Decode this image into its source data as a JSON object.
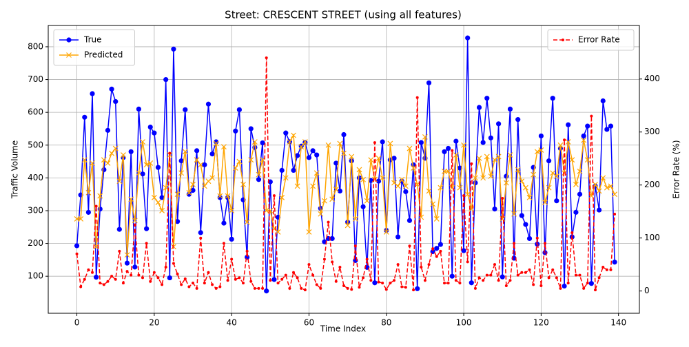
{
  "chart_data": {
    "type": "line",
    "title": "Street: CRESCENT STREET (using all features)",
    "x_label": "Time Index",
    "y_label": "Traffic Volume",
    "y2_label": "Error Rate (%)",
    "x": [
      0,
      1,
      2,
      3,
      4,
      5,
      6,
      7,
      8,
      9,
      10,
      11,
      12,
      13,
      14,
      15,
      16,
      17,
      18,
      19,
      20,
      21,
      22,
      23,
      24,
      25,
      26,
      27,
      28,
      29,
      30,
      31,
      32,
      33,
      34,
      35,
      36,
      37,
      38,
      39,
      40,
      41,
      42,
      43,
      44,
      45,
      46,
      47,
      48,
      49,
      50,
      51,
      52,
      53,
      54,
      55,
      56,
      57,
      58,
      59,
      60,
      61,
      62,
      63,
      64,
      65,
      66,
      67,
      68,
      69,
      70,
      71,
      72,
      73,
      74,
      75,
      76,
      77,
      78,
      79,
      80,
      81,
      82,
      83,
      84,
      85,
      86,
      87,
      88,
      89,
      90,
      91,
      92,
      93,
      94,
      95,
      96,
      97,
      98,
      99,
      100,
      101,
      102,
      103,
      104,
      105,
      106,
      107,
      108,
      109,
      110,
      111,
      112,
      113,
      114,
      115,
      116,
      117,
      118,
      119,
      120,
      121,
      122,
      123,
      124,
      125,
      126,
      127,
      128,
      129,
      130,
      131,
      132,
      133,
      134,
      135,
      136,
      137,
      138,
      139
    ],
    "series": [
      {
        "name": "True",
        "color": "#0000ff",
        "marker": "circle",
        "linestyle": "solid",
        "axis": "y",
        "values": [
          193,
          348,
          585,
          295,
          657,
          97,
          305,
          425,
          545,
          671,
          633,
          243,
          462,
          140,
          480,
          128,
          610,
          412,
          245,
          555,
          537,
          432,
          340,
          700,
          95,
          793,
          267,
          452,
          608,
          350,
          362,
          483,
          233,
          440,
          625,
          473,
          510,
          340,
          262,
          340,
          213,
          543,
          608,
          333,
          158,
          550,
          493,
          395,
          507,
          55,
          388,
          90,
          280,
          423,
          537,
          510,
          423,
          468,
          497,
          508,
          462,
          483,
          470,
          307,
          205,
          215,
          215,
          445,
          360,
          532,
          265,
          452,
          148,
          400,
          312,
          127,
          392,
          80,
          390,
          510,
          240,
          455,
          460,
          220,
          390,
          358,
          270,
          440,
          62,
          508,
          460,
          690,
          175,
          185,
          197,
          480,
          490,
          100,
          512,
          430,
          178,
          827,
          80,
          385,
          615,
          508,
          643,
          522,
          305,
          565,
          98,
          405,
          610,
          155,
          578,
          285,
          258,
          215,
          432,
          198,
          528,
          172,
          452,
          643,
          330,
          490,
          70,
          562,
          220,
          295,
          350,
          528,
          558,
          78,
          375,
          302,
          635,
          548,
          558,
          143
        ]
      },
      {
        "name": "Predicted",
        "color": "#ffa500",
        "marker": "x",
        "linestyle": "solid",
        "axis": "y",
        "values": [
          275,
          275,
          455,
          355,
          445,
          190,
          345,
          455,
          445,
          475,
          490,
          390,
          470,
          165,
          335,
          270,
          415,
          510,
          440,
          445,
          340,
          325,
          300,
          370,
          470,
          190,
          350,
          415,
          480,
          355,
          380,
          455,
          440,
          375,
          390,
          400,
          505,
          345,
          495,
          345,
          300,
          430,
          450,
          380,
          265,
          455,
          510,
          410,
          455,
          300,
          300,
          245,
          235,
          340,
          400,
          510,
          530,
          375,
          495,
          510,
          235,
          375,
          415,
          290,
          330,
          500,
          335,
          365,
          505,
          475,
          255,
          465,
          275,
          425,
          395,
          330,
          455,
          395,
          460,
          400,
          235,
          505,
          385,
          375,
          395,
          375,
          490,
          430,
          380,
          280,
          525,
          360,
          320,
          275,
          370,
          420,
          420,
          370,
          470,
          370,
          500,
          350,
          305,
          400,
          460,
          400,
          465,
          405,
          455,
          465,
          275,
          385,
          470,
          290,
          425,
          390,
          370,
          340,
          410,
          480,
          485,
          325,
          370,
          415,
          405,
          500,
          415,
          510,
          455,
          380,
          420,
          515,
          455,
          345,
          380,
          360,
          400,
          370,
          375,
          350
        ]
      },
      {
        "name": "Error Rate",
        "color": "#ff0000",
        "marker": "dot",
        "linestyle": "dashed",
        "axis": "y2",
        "values": [
          70,
          8,
          22,
          40,
          35,
          160,
          15,
          12,
          18,
          28,
          22,
          75,
          15,
          37,
          30,
          125,
          30,
          25,
          90,
          18,
          35,
          25,
          12,
          45,
          260,
          52,
          32,
          12,
          23,
          8,
          15,
          5,
          100,
          15,
          35,
          12,
          5,
          8,
          90,
          20,
          60,
          22,
          25,
          15,
          75,
          18,
          5,
          5,
          5,
          440,
          20,
          180,
          15,
          22,
          30,
          5,
          35,
          25,
          5,
          2,
          50,
          30,
          12,
          5,
          60,
          130,
          55,
          18,
          45,
          10,
          5,
          3,
          85,
          7,
          25,
          60,
          20,
          280,
          17,
          15,
          3,
          15,
          20,
          50,
          8,
          7,
          85,
          2,
          365,
          45,
          20,
          50,
          80,
          65,
          75,
          15,
          15,
          265,
          20,
          15,
          180,
          55,
          240,
          5,
          25,
          20,
          30,
          30,
          50,
          20,
          175,
          10,
          20,
          90,
          30,
          35,
          35,
          40,
          12,
          100,
          10,
          90,
          25,
          40,
          25,
          5,
          285,
          15,
          110,
          30,
          30,
          5,
          15,
          330,
          2,
          25,
          45,
          40,
          40,
          145
        ]
      }
    ],
    "xlim": [
      -7.4,
      145.4
    ],
    "xticks": [
      0,
      20,
      40,
      60,
      80,
      100,
      120,
      140
    ],
    "ylim": [
      -13,
      865
    ],
    "yticks": [
      100,
      200,
      300,
      400,
      500,
      600,
      700,
      800
    ],
    "y2lim": [
      -42,
      501
    ],
    "y2ticks": [
      0,
      100,
      200,
      300,
      400
    ],
    "grid": true,
    "legend": "upper left",
    "legend2": "upper right"
  }
}
